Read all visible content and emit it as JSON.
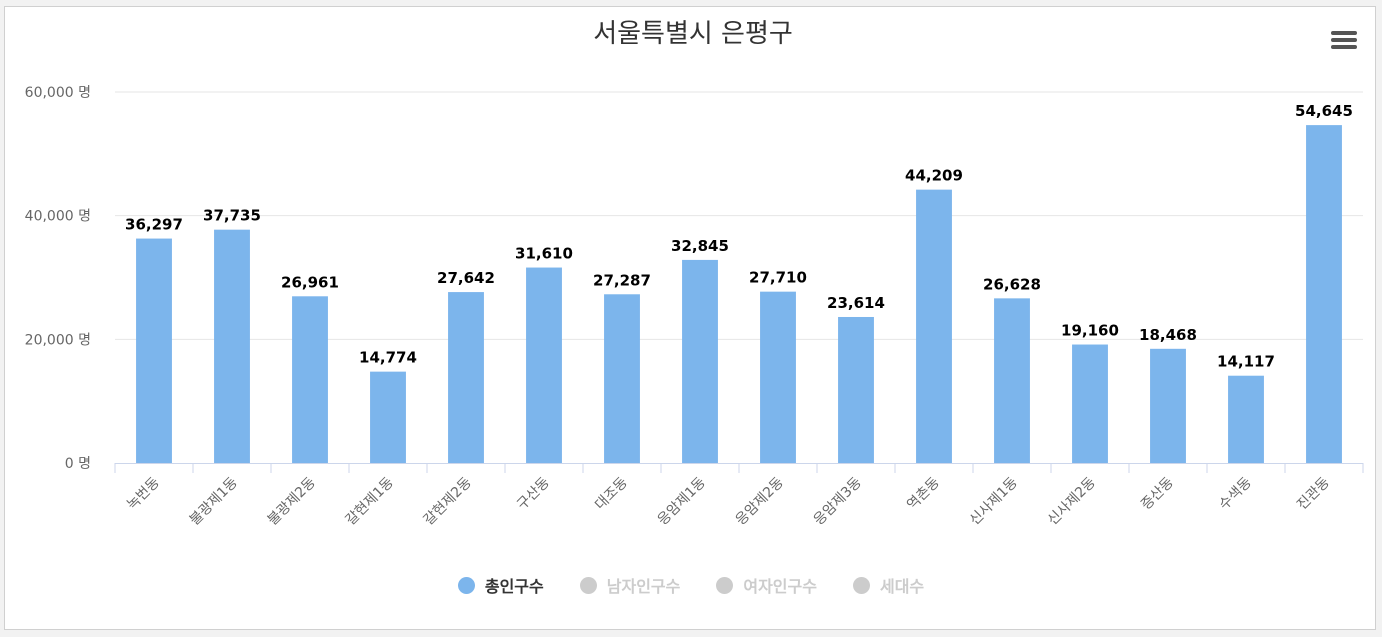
{
  "chart_data": {
    "type": "bar",
    "title": "서울특별시 은평구",
    "categories": [
      "녹번동",
      "불광제1동",
      "불광제2동",
      "갈현제1동",
      "갈현제2동",
      "구산동",
      "대조동",
      "응암제1동",
      "응암제2동",
      "응암제3동",
      "역촌동",
      "신사제1동",
      "신사제2동",
      "증산동",
      "수색동",
      "진관동"
    ],
    "series": [
      {
        "name": "총인구수",
        "visible": true,
        "values": [
          36297,
          37735,
          26961,
          14774,
          27642,
          31610,
          27287,
          32845,
          27710,
          23614,
          44209,
          26628,
          19160,
          18468,
          14117,
          54645
        ],
        "labels": [
          "36,297",
          "37,735",
          "26,961",
          "14,774",
          "27,642",
          "31,610",
          "27,287",
          "32,845",
          "27,710",
          "23,614",
          "44,209",
          "26,628",
          "19,160",
          "18,468",
          "14,117",
          "54,645"
        ]
      }
    ],
    "ylim": [
      0,
      60000
    ],
    "yticks": [
      0,
      20000,
      40000,
      60000
    ],
    "ytick_labels": [
      "0 명",
      "20,000 명",
      "40,000 명",
      "60,000 명"
    ],
    "xlabel": "",
    "ylabel": "",
    "grid": true,
    "legend_position": "bottom"
  },
  "legend": [
    {
      "label": "총인구수",
      "active": true
    },
    {
      "label": "남자인구수",
      "active": false
    },
    {
      "label": "여자인구수",
      "active": false
    },
    {
      "label": "세대수",
      "active": false
    }
  ],
  "colors": {
    "bar": "#7cb5ec",
    "grid": "#e6e6e6",
    "axis": "#ccd6eb",
    "text": "#333333",
    "tick_text": "#666666",
    "inactive": "#cccccc"
  },
  "menu_icon": "hamburger-menu-icon"
}
